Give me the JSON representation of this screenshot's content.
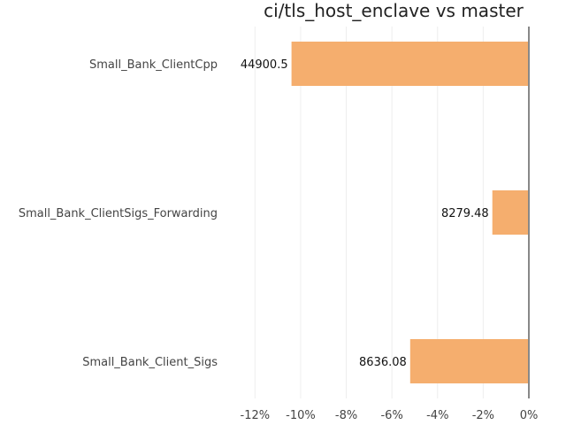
{
  "chart_data": {
    "type": "bar",
    "orientation": "horizontal",
    "title": "ci/tls_host_enclave vs master",
    "xlabel": "",
    "ylabel": "",
    "categories": [
      "Small_Bank_ClientCpp",
      "Small_Bank_ClientSigs_Forwarding",
      "Small_Bank_Client_Sigs"
    ],
    "values": [
      -10.4,
      -1.6,
      -5.2
    ],
    "value_unit": "%",
    "data_labels": [
      "44900.5",
      "8279.48",
      "8636.08"
    ],
    "xlim": [
      -12.4,
      0
    ],
    "xticks": [
      -12,
      -10,
      -8,
      -6,
      -4,
      -2,
      0
    ],
    "xtick_labels": [
      "-12%",
      "-10%",
      "-8%",
      "-6%",
      "-4%",
      "-2%",
      "0%"
    ],
    "grid": true,
    "legend": "none",
    "colors": {
      "bar": "#f5ae6e",
      "zero_line": "#888888",
      "grid": "#eeeeee"
    }
  }
}
